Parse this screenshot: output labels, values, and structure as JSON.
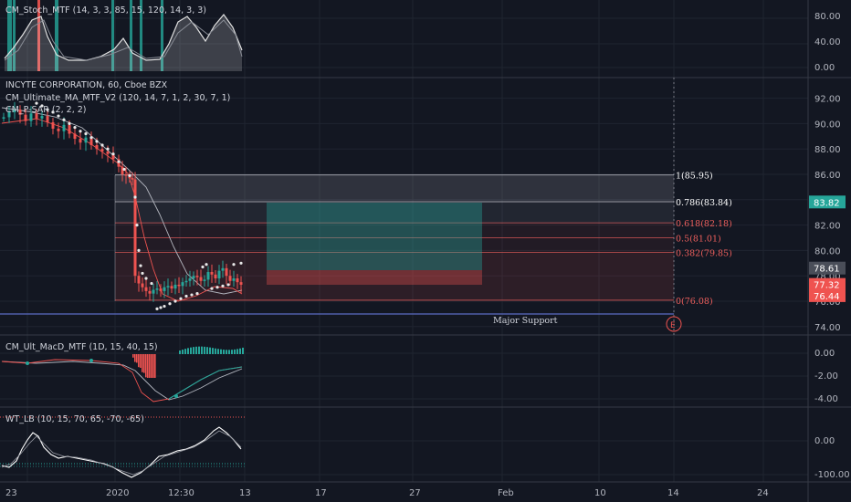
{
  "colors": {
    "bg": "#131722",
    "grid": "#1f2430",
    "divider": "#363a45",
    "text": "#d1d4dc",
    "axis_text": "#b2b5be",
    "up": "#26a69a",
    "down": "#ef5350",
    "fib_red": "#f0605d",
    "fib_white": "#ffffff",
    "support": "#5b6bc4",
    "position_green": "#2e7d72",
    "position_red": "#7d2b2e"
  },
  "panes": {
    "stoch": {
      "title": "CM_Stoch_MTF (14, 3, 3, 85, 15, 120, 14, 3, 3)",
      "ticks": [
        "80.00",
        "40.00",
        "0.00"
      ]
    },
    "main": {
      "title": "INCYTE CORPORATION, 60, Cboe BZX",
      "study1": "CM_Ultimate_MA_MTF_V2 (120, 14, 7, 1, 2, 30, 7, 1)",
      "study2": "CM_P-SAR (2, 2, 2)",
      "ticks": [
        "92.00",
        "90.00",
        "88.00",
        "86.00",
        "84.00",
        "82.00",
        "80.00",
        "78.00",
        "76.00",
        "74.00"
      ],
      "price_badges": [
        {
          "value": "83.82",
          "color": "#26a69a"
        },
        {
          "value": "78.61",
          "color": "#4a4e59"
        },
        {
          "value": "77.32",
          "color": "#ef5350"
        },
        {
          "value": "76.44",
          "color": "#ef5350"
        }
      ],
      "support_label": "Major Support",
      "event_marker": "E"
    },
    "macd": {
      "title": "CM_Ult_MacD_MTF (1D, 15, 40, 15)",
      "ticks": [
        "0.00",
        "-2.00",
        "-4.00"
      ]
    },
    "wt": {
      "title": "WT_LB (10, 15, 70, 65, -70, -65)",
      "ticks": [
        "0.00",
        "-100.00"
      ]
    }
  },
  "x_axis_labels": [
    "23",
    "2020",
    "12:30",
    "13",
    "17",
    "27",
    "Feb",
    "10",
    "14",
    "24"
  ],
  "chart_data": {
    "type": "candlestick",
    "title": "INCYTE CORPORATION, 60, Cboe BZX",
    "ylim": [
      73.5,
      93.5
    ],
    "fibonacci": [
      {
        "ratio": "1",
        "price": 85.95,
        "label": "1(85.95)"
      },
      {
        "ratio": "0.786",
        "price": 83.84,
        "label": "0.786(83.84)"
      },
      {
        "ratio": "0.618",
        "price": 82.18,
        "label": "0.618(82.18)"
      },
      {
        "ratio": "0.5",
        "price": 81.01,
        "label": "0.5(81.01)"
      },
      {
        "ratio": "0.382",
        "price": 79.85,
        "label": "0.382(79.85)"
      },
      {
        "ratio": "0",
        "price": 76.08,
        "label": "0(76.08)"
      }
    ],
    "position": {
      "target": 83.82,
      "entry": 78.61,
      "stop": 77.32
    },
    "major_support": 74.95,
    "last_prices": [
      78.61,
      77.32,
      76.44
    ]
  }
}
